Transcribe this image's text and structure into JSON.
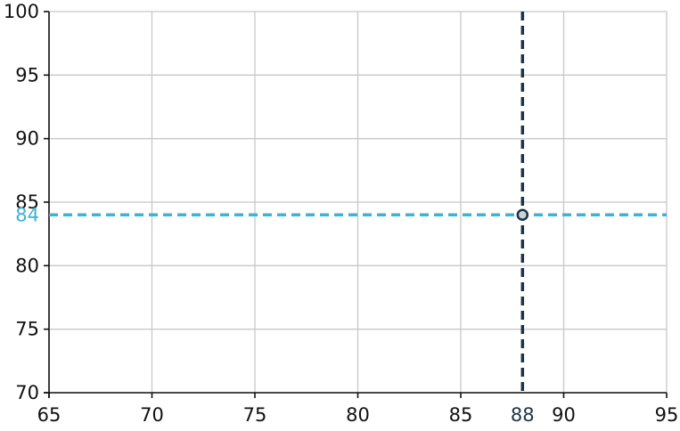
{
  "chart_data": {
    "type": "scatter",
    "title": "",
    "xlabel": "",
    "ylabel": "",
    "xlim": [
      65,
      95
    ],
    "ylim": [
      70,
      100
    ],
    "x_ticks": [
      "65",
      "70",
      "75",
      "80",
      "85",
      "90",
      "95"
    ],
    "y_ticks": [
      "70",
      "75",
      "80",
      "85",
      "90",
      "95",
      "100"
    ],
    "grid": true,
    "point": {
      "x": 88,
      "y": 84
    },
    "reference_lines": {
      "vertical": {
        "value": 88,
        "label": "88",
        "color": "#1d3446"
      },
      "horizontal": {
        "value": 84,
        "label": "84",
        "color": "#3db3d6"
      }
    },
    "point_marker": {
      "fill": "#c9d3d9",
      "stroke": "#1d3446"
    }
  }
}
